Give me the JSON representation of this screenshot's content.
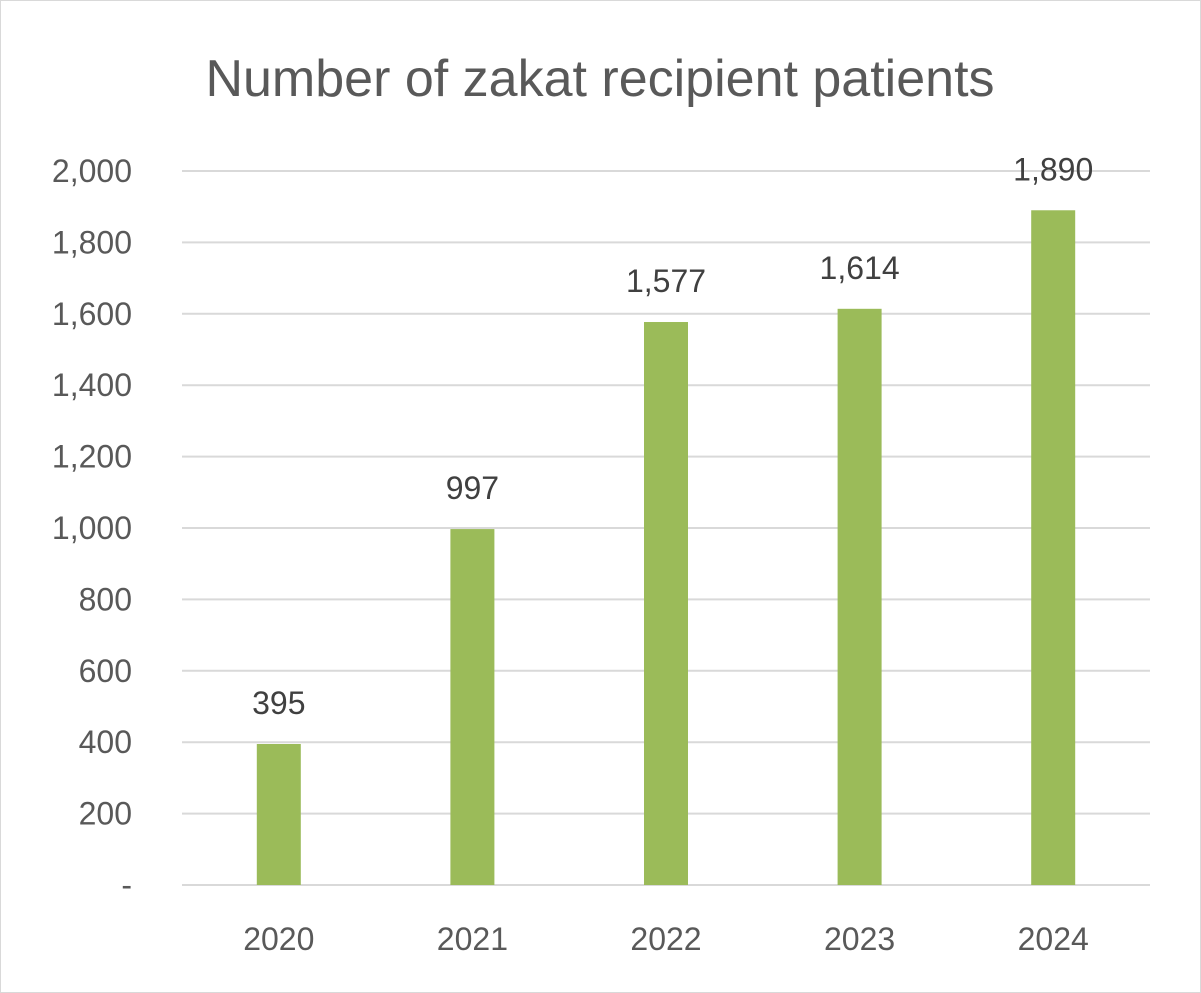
{
  "chart_data": {
    "type": "bar",
    "title": "Number of zakat recipient patients",
    "categories": [
      "2020",
      "2021",
      "2022",
      "2023",
      "2024"
    ],
    "values": [
      395,
      997,
      1577,
      1614,
      1890
    ],
    "value_labels": [
      "395",
      "997",
      "1,577",
      "1,614",
      "1,890"
    ],
    "ylim": [
      0,
      2000
    ],
    "yticks": [
      0,
      200,
      400,
      600,
      800,
      1000,
      1200,
      1400,
      1600,
      1800,
      2000
    ],
    "ytick_labels": [
      "-",
      "200",
      "400",
      "600",
      "800",
      "1,000",
      "1,200",
      "1,400",
      "1,600",
      "1,800",
      "2,000"
    ],
    "grid": true,
    "legend": "none",
    "bar_color": "#9BBB59"
  }
}
